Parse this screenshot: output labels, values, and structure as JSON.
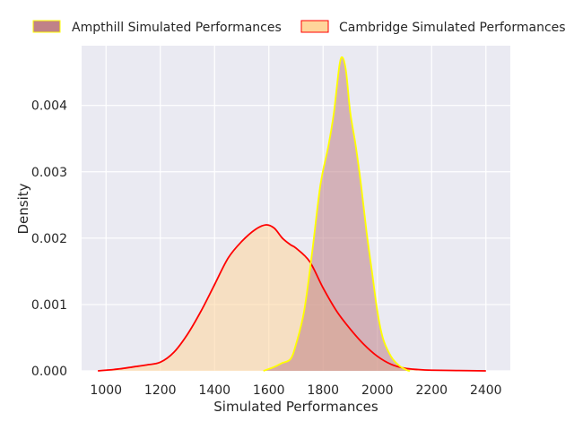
{
  "chart_data": {
    "type": "area",
    "xlabel": "Simulated Performances",
    "ylabel": "Density",
    "xlim": [
      910,
      2490
    ],
    "ylim": [
      0,
      0.0049
    ],
    "x_ticks": [
      1000,
      1200,
      1400,
      1600,
      1800,
      2000,
      2200,
      2400
    ],
    "x_tick_labels": [
      "1000",
      "1200",
      "1400",
      "1600",
      "1800",
      "2000",
      "2200",
      "2400"
    ],
    "y_ticks": [
      0,
      0.001,
      0.002,
      0.003,
      0.004
    ],
    "y_tick_labels": [
      "0.000",
      "0.001",
      "0.002",
      "0.003",
      "0.004"
    ],
    "grid": true,
    "legend_position": "top",
    "series": [
      {
        "name": "Ampthill Simulated Performances",
        "fill_color": "#C08288",
        "line_color": "#FFFF00",
        "points": [
          [
            1580,
            0
          ],
          [
            1620,
            6e-05
          ],
          [
            1650,
            0.00012
          ],
          [
            1680,
            0.00018
          ],
          [
            1700,
            0.0004
          ],
          [
            1730,
            0.0009
          ],
          [
            1760,
            0.0018
          ],
          [
            1790,
            0.0028
          ],
          [
            1820,
            0.0034
          ],
          [
            1840,
            0.0039
          ],
          [
            1860,
            0.0046
          ],
          [
            1872,
            0.00472
          ],
          [
            1885,
            0.0045
          ],
          [
            1900,
            0.0039
          ],
          [
            1920,
            0.0034
          ],
          [
            1940,
            0.0028
          ],
          [
            1960,
            0.0021
          ],
          [
            1980,
            0.0015
          ],
          [
            2000,
            0.0009
          ],
          [
            2020,
            0.0005
          ],
          [
            2050,
            0.00022
          ],
          [
            2080,
            8e-05
          ],
          [
            2110,
            1e-05
          ],
          [
            2120,
            0
          ]
        ]
      },
      {
        "name": "Cambridge Simulated Performances",
        "fill_color": "#FFD59B",
        "line_color": "#FF0000",
        "points": [
          [
            970,
            0
          ],
          [
            1000,
            1e-05
          ],
          [
            1050,
            3e-05
          ],
          [
            1100,
            6e-05
          ],
          [
            1150,
            9e-05
          ],
          [
            1200,
            0.00013
          ],
          [
            1250,
            0.00028
          ],
          [
            1300,
            0.00055
          ],
          [
            1350,
            0.0009
          ],
          [
            1400,
            0.0013
          ],
          [
            1450,
            0.0017
          ],
          [
            1500,
            0.00195
          ],
          [
            1550,
            0.00213
          ],
          [
            1590,
            0.0022
          ],
          [
            1620,
            0.00215
          ],
          [
            1650,
            0.002
          ],
          [
            1680,
            0.0019
          ],
          [
            1700,
            0.00185
          ],
          [
            1750,
            0.00165
          ],
          [
            1800,
            0.00125
          ],
          [
            1850,
            0.0009
          ],
          [
            1900,
            0.00063
          ],
          [
            1950,
            0.0004
          ],
          [
            2000,
            0.00022
          ],
          [
            2050,
            0.0001
          ],
          [
            2100,
            4e-05
          ],
          [
            2150,
            2e-05
          ],
          [
            2200,
            1e-05
          ],
          [
            2300,
            5e-06
          ],
          [
            2400,
            0
          ]
        ]
      }
    ]
  }
}
